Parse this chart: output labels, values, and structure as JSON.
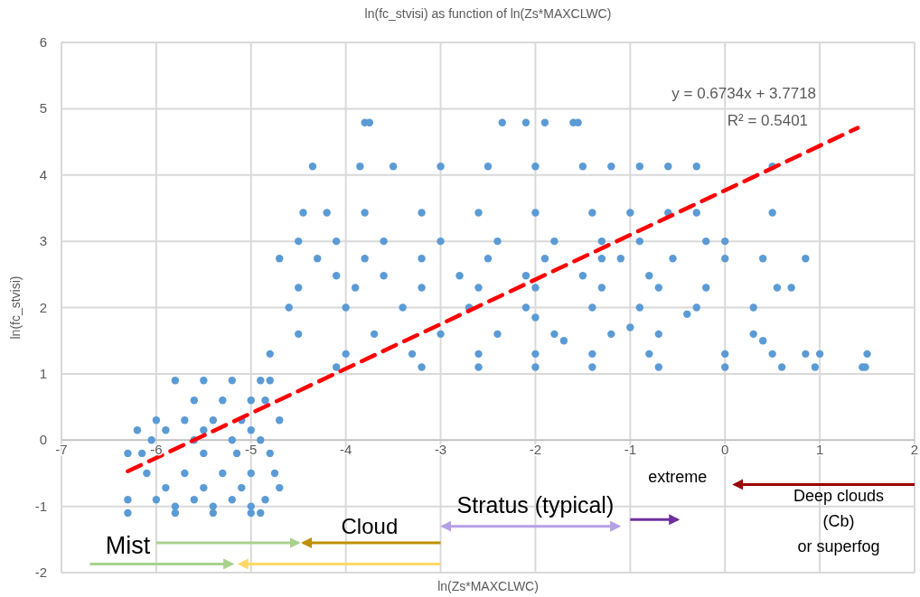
{
  "chart_data": {
    "type": "scatter",
    "title": "ln(fc_stvisi) as function of ln(Zs*MAXCLWC)",
    "xlabel": "ln(Zs*MAXCLWC)",
    "ylabel": "ln(fc_stvisi)",
    "xlim": [
      -7,
      2
    ],
    "xticks": [
      -7,
      -6,
      -5,
      -4,
      -3,
      -2,
      -1,
      0,
      1,
      2
    ],
    "ylim": [
      -2,
      6
    ],
    "yticks": [
      -2,
      -1,
      0,
      1,
      2,
      3,
      4,
      5,
      6
    ],
    "grid": true,
    "marker": "circle",
    "annotations": [
      "y = 0.6734x + 3.7718",
      "R² = 0.5401",
      "Mist",
      "Cloud",
      "Stratus (typical)",
      "extreme",
      "Deep clouds\n(Cb)\nor superfog"
    ],
    "series": [
      {
        "color": "#5b9bd5",
        "x": [
          -3.8,
          -3.75,
          -2.35,
          -2.1,
          -1.9,
          -1.6,
          -1.55,
          -4.35,
          -3.85,
          -3.5,
          -3.0,
          -2.5,
          -2.0,
          -1.5,
          -1.2,
          -0.9,
          -0.6,
          -0.3,
          0.5,
          -4.45,
          -4.2,
          -3.8,
          -3.2,
          -2.6,
          -2.0,
          -1.4,
          -1.0,
          -0.6,
          -0.3,
          0.5,
          -4.5,
          -4.1,
          -3.6,
          -3.0,
          -2.4,
          -1.8,
          -1.3,
          -0.9,
          -0.2,
          0.0,
          -4.7,
          -4.3,
          -3.8,
          -3.2,
          -2.5,
          -1.9,
          -1.3,
          -1.1,
          -0.55,
          0.0,
          0.4,
          0.85,
          -4.1,
          -3.6,
          -2.8,
          -2.1,
          -1.5,
          -0.8,
          -4.5,
          -3.9,
          -3.2,
          -2.6,
          -2.0,
          -1.3,
          -0.7,
          -0.2,
          0.55,
          0.7,
          -4.6,
          -4.0,
          -3.4,
          -2.7,
          -2.1,
          -1.4,
          -0.9,
          -0.3,
          0.3,
          -4.5,
          -3.7,
          -3.0,
          -2.4,
          -1.8,
          -1.2,
          -0.7,
          0.3,
          -4.8,
          -4.0,
          -3.3,
          -2.6,
          -2.0,
          -1.4,
          -0.8,
          0.0,
          0.5,
          0.85,
          1.0,
          1.5,
          -4.1,
          -3.2,
          -2.6,
          -2.0,
          -1.4,
          -0.7,
          0.0,
          0.6,
          0.95,
          1.45,
          1.48,
          -2.0,
          -1.7,
          -1.0,
          0.4,
          -0.4,
          -5.8,
          -5.5,
          -5.2,
          -4.9,
          -4.8,
          -5.6,
          -5.3,
          -5.0,
          -4.85,
          -6.0,
          -5.7,
          -5.4,
          -5.1,
          -4.7,
          -6.2,
          -5.9,
          -5.5,
          -5.0,
          -6.05,
          -5.6,
          -5.2,
          -4.9,
          -6.3,
          -6.15,
          -5.5,
          -5.15,
          -4.8,
          -6.1,
          -5.7,
          -5.3,
          -5.0,
          -4.75,
          -5.9,
          -5.5,
          -5.1,
          -4.7,
          -6.3,
          -6.0,
          -5.6,
          -5.2,
          -4.85,
          -5.8,
          -5.4,
          -5.0,
          -6.3,
          -5.8,
          -5.4,
          -5.0,
          -4.9
        ],
        "values": [
          4.79,
          4.79,
          4.79,
          4.79,
          4.79,
          4.79,
          4.79,
          4.13,
          4.13,
          4.13,
          4.13,
          4.13,
          4.13,
          4.13,
          4.13,
          4.13,
          4.13,
          4.13,
          4.13,
          3.43,
          3.43,
          3.43,
          3.43,
          3.43,
          3.43,
          3.43,
          3.43,
          3.43,
          3.43,
          3.43,
          3.0,
          3.0,
          3.0,
          3.0,
          3.0,
          3.0,
          3.0,
          3.0,
          3.0,
          3.0,
          2.74,
          2.74,
          2.74,
          2.74,
          2.74,
          2.74,
          2.74,
          2.74,
          2.74,
          2.74,
          2.74,
          2.74,
          2.48,
          2.48,
          2.48,
          2.48,
          2.48,
          2.48,
          2.3,
          2.3,
          2.3,
          2.3,
          2.3,
          2.3,
          2.3,
          2.3,
          2.3,
          2.3,
          2.0,
          2.0,
          2.0,
          2.0,
          2.0,
          2.0,
          2.0,
          2.0,
          2.0,
          1.6,
          1.6,
          1.6,
          1.6,
          1.6,
          1.6,
          1.6,
          1.6,
          1.3,
          1.3,
          1.3,
          1.3,
          1.3,
          1.3,
          1.3,
          1.3,
          1.3,
          1.3,
          1.3,
          1.3,
          1.1,
          1.1,
          1.1,
          1.1,
          1.1,
          1.1,
          1.1,
          1.1,
          1.1,
          1.1,
          1.1,
          1.85,
          1.5,
          1.7,
          1.5,
          1.9,
          0.9,
          0.9,
          0.9,
          0.9,
          0.9,
          0.6,
          0.6,
          0.6,
          0.6,
          0.3,
          0.3,
          0.3,
          0.3,
          0.3,
          0.15,
          0.15,
          0.15,
          0.15,
          0.0,
          0.0,
          0.0,
          0.0,
          -0.2,
          -0.2,
          -0.2,
          -0.2,
          -0.2,
          -0.5,
          -0.5,
          -0.5,
          -0.5,
          -0.5,
          -0.72,
          -0.72,
          -0.72,
          -0.72,
          -0.9,
          -0.9,
          -0.9,
          -0.9,
          -0.9,
          -1.0,
          -1.0,
          -1.0,
          -1.1,
          -1.1,
          -1.1,
          -1.1,
          -1.1
        ]
      },
      {
        "type": "line",
        "color": "#ff0000",
        "line_style": "dashed",
        "marker": "none",
        "x": [
          -6.3,
          1.4
        ],
        "values": [
          -0.47,
          4.71
        ]
      }
    ]
  }
}
